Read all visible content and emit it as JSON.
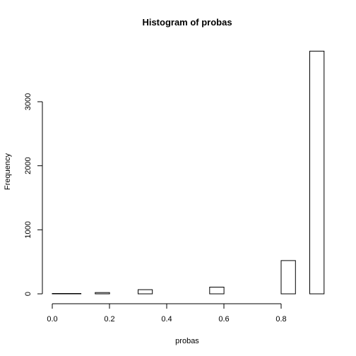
{
  "chart_data": {
    "type": "bar",
    "title": "Histogram of probas",
    "xlabel": "probas",
    "ylabel": "Frequency",
    "xlim": [
      0.0,
      0.95
    ],
    "ylim": [
      0,
      3800
    ],
    "xticks": [
      0.0,
      0.2,
      0.4,
      0.6,
      0.8
    ],
    "xtick_labels": [
      "0.0",
      "0.2",
      "0.4",
      "0.6",
      "0.8"
    ],
    "yticks": [
      0,
      1000,
      2000,
      3000
    ],
    "ytick_labels": [
      "0",
      "1000",
      "2000",
      "3000"
    ],
    "bins": [
      {
        "x0": 0.0,
        "x1": 0.05,
        "value": 5
      },
      {
        "x0": 0.05,
        "x1": 0.1,
        "value": 5
      },
      {
        "x0": 0.15,
        "x1": 0.2,
        "value": 20
      },
      {
        "x0": 0.3,
        "x1": 0.35,
        "value": 65
      },
      {
        "x0": 0.55,
        "x1": 0.6,
        "value": 105
      },
      {
        "x0": 0.8,
        "x1": 0.85,
        "value": 520
      },
      {
        "x0": 0.9,
        "x1": 0.95,
        "value": 3790
      }
    ],
    "colors": {
      "bar_fill": "#ffffff",
      "bar_stroke": "#000000"
    }
  }
}
